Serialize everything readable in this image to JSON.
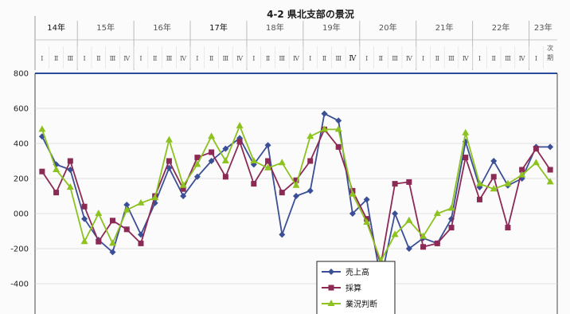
{
  "chart_data": {
    "type": "line",
    "title": "4-2 県北支部の景況",
    "years": [
      {
        "label": "14年",
        "from": 0,
        "to": 3,
        "dark": true
      },
      {
        "label": "15年",
        "from": 3,
        "to": 7,
        "dark": false
      },
      {
        "label": "16年",
        "from": 7,
        "to": 11,
        "dark": false
      },
      {
        "label": "17年",
        "from": 11,
        "to": 15,
        "dark": true
      },
      {
        "label": "18年",
        "from": 15,
        "to": 19,
        "dark": false
      },
      {
        "label": "19年",
        "from": 19,
        "to": 23,
        "dark": false
      },
      {
        "label": "20年",
        "from": 23,
        "to": 27,
        "dark": false
      },
      {
        "label": "21年",
        "from": 27,
        "to": 31,
        "dark": false
      },
      {
        "label": "22年",
        "from": 31,
        "to": 35,
        "dark": false
      },
      {
        "label": "23年",
        "from": 35,
        "to": 37,
        "dark": false
      }
    ],
    "categories": [
      "Ⅰ",
      "Ⅱ",
      "Ⅲ",
      "Ⅰ",
      "Ⅱ",
      "Ⅲ",
      "Ⅳ",
      "Ⅰ",
      "Ⅱ",
      "Ⅲ",
      "Ⅳ",
      "Ⅰ",
      "Ⅱ",
      "Ⅲ",
      "Ⅳ",
      "Ⅰ",
      "Ⅱ",
      "Ⅲ",
      "Ⅳ",
      "Ⅰ",
      "Ⅱ",
      "Ⅲ",
      "Ⅳ",
      "Ⅰ",
      "Ⅱ",
      "Ⅲ",
      "Ⅳ",
      "Ⅰ",
      "Ⅱ",
      "Ⅲ",
      "Ⅳ",
      "Ⅰ",
      "Ⅱ",
      "Ⅲ",
      "Ⅳ",
      "Ⅰ",
      "次期"
    ],
    "ylim": [
      -500,
      800
    ],
    "ytick_values": [
      800,
      600,
      400,
      200,
      0,
      -200,
      -400
    ],
    "ytick_labels": [
      "800",
      "600",
      "400",
      "200",
      "000",
      "-200",
      "-400"
    ],
    "series": [
      {
        "name": "売上高",
        "color": "#3a4f96",
        "marker": "diamond",
        "values": [
          440,
          280,
          250,
          -30,
          -150,
          -220,
          50,
          -120,
          60,
          260,
          100,
          210,
          300,
          370,
          430,
          280,
          390,
          -120,
          100,
          130,
          570,
          530,
          0,
          80,
          -380,
          0,
          -200,
          -140,
          -170,
          -30,
          410,
          150,
          300,
          160,
          200,
          380,
          380
        ]
      },
      {
        "name": "採算",
        "color": "#8b2a55",
        "marker": "square",
        "values": [
          240,
          120,
          300,
          40,
          -160,
          -40,
          -90,
          -170,
          100,
          300,
          140,
          320,
          350,
          210,
          410,
          170,
          300,
          120,
          190,
          300,
          480,
          380,
          130,
          -30,
          -290,
          170,
          180,
          -190,
          -170,
          -80,
          320,
          80,
          210,
          -80,
          250,
          370,
          250
        ]
      },
      {
        "name": "業況判断",
        "color": "#8dc21f",
        "marker": "triangle",
        "values": [
          480,
          250,
          150,
          -160,
          0,
          -170,
          20,
          60,
          90,
          420,
          160,
          280,
          440,
          300,
          500,
          300,
          260,
          290,
          160,
          440,
          480,
          480,
          110,
          -50,
          -270,
          -120,
          -40,
          -130,
          0,
          30,
          460,
          170,
          140,
          170,
          220,
          290,
          180
        ]
      }
    ],
    "legend_position": "bottom-center"
  }
}
